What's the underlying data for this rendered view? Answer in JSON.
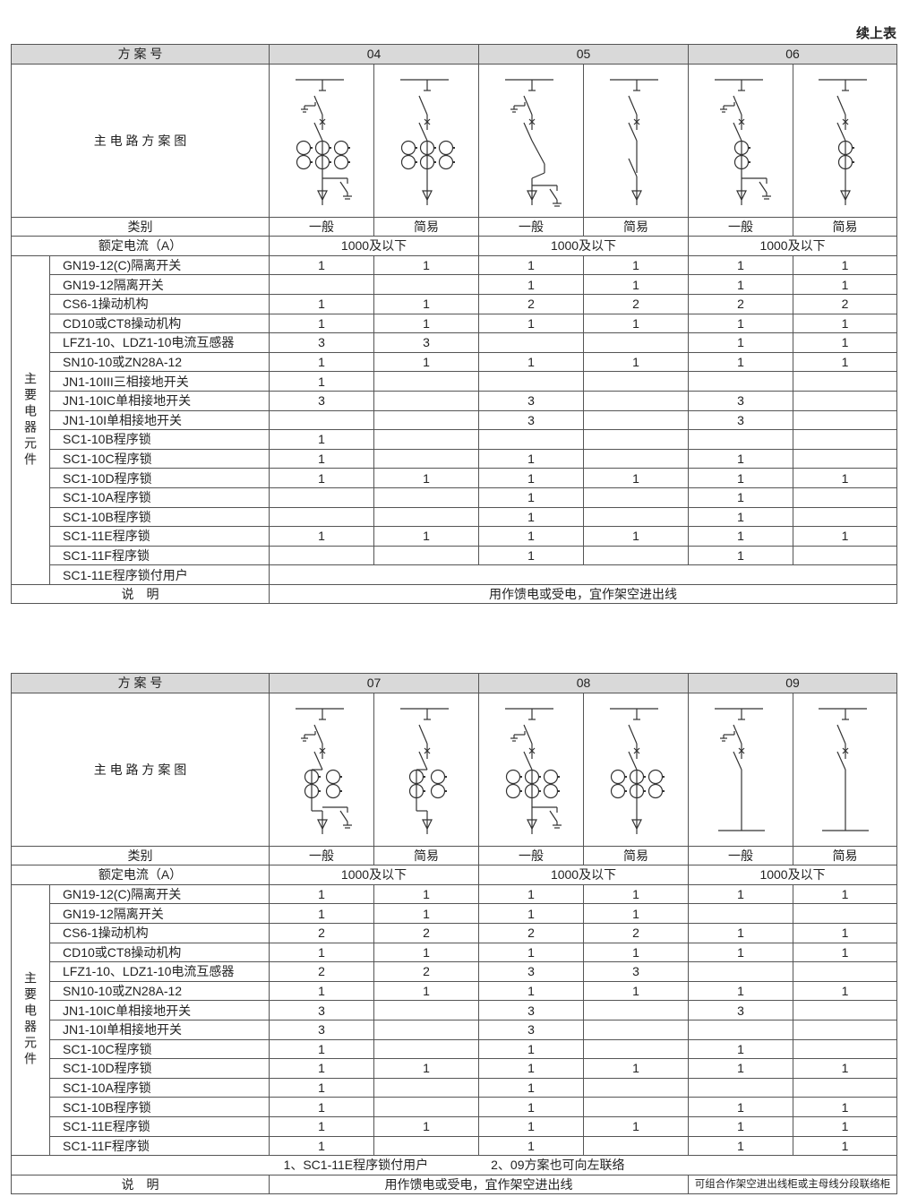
{
  "continued_label": "续上表",
  "labels": {
    "scheme_no": "方 案 号",
    "main_circuit": "主 电 路 方 案 图",
    "category": "类别",
    "rated_current": "额定电流（A）",
    "main_components": "主要电器元件",
    "remarks": "说　明"
  },
  "tables": [
    {
      "schemes": [
        "04",
        "05",
        "06"
      ],
      "categories": [
        "一般",
        "简易",
        "一般",
        "简易",
        "一般",
        "简易"
      ],
      "rated_current": [
        "1000及以下",
        "1000及以下",
        "1000及以下"
      ],
      "rows": [
        {
          "name": "GN19-12(C)隔离开关",
          "values": [
            "1",
            "1",
            "1",
            "1",
            "1",
            "1"
          ]
        },
        {
          "name": "GN19-12隔离开关",
          "values": [
            "",
            "",
            "1",
            "1",
            "1",
            "1"
          ]
        },
        {
          "name": "CS6-1操动机构",
          "values": [
            "1",
            "1",
            "2",
            "2",
            "2",
            "2"
          ]
        },
        {
          "name": "CD10或CT8操动机构",
          "values": [
            "1",
            "1",
            "1",
            "1",
            "1",
            "1"
          ]
        },
        {
          "name": "LFZ1-10、LDZ1-10电流互感器",
          "values": [
            "3",
            "3",
            "",
            "",
            "1",
            "1"
          ]
        },
        {
          "name": "SN10-10或ZN28A-12",
          "values": [
            "1",
            "1",
            "1",
            "1",
            "1",
            "1"
          ]
        },
        {
          "name": "JN1-10III三相接地开关",
          "values": [
            "1",
            "",
            "",
            "",
            "",
            ""
          ]
        },
        {
          "name": "JN1-10IC单相接地开关",
          "values": [
            "3",
            "",
            "3",
            "",
            "3",
            ""
          ]
        },
        {
          "name": "JN1-10I单相接地开关",
          "values": [
            "",
            "",
            "3",
            "",
            "3",
            ""
          ]
        },
        {
          "name": "SC1-10B程序锁",
          "values": [
            "1",
            "",
            "",
            "",
            "",
            ""
          ]
        },
        {
          "name": "SC1-10C程序锁",
          "values": [
            "1",
            "",
            "1",
            "",
            "1",
            ""
          ]
        },
        {
          "name": "SC1-10D程序锁",
          "values": [
            "1",
            "1",
            "1",
            "1",
            "1",
            "1"
          ]
        },
        {
          "name": "SC1-10A程序锁",
          "values": [
            "",
            "",
            "1",
            "",
            "1",
            ""
          ]
        },
        {
          "name": "SC1-10B程序锁",
          "values": [
            "",
            "",
            "1",
            "",
            "1",
            ""
          ]
        },
        {
          "name": "SC1-11E程序锁",
          "values": [
            "1",
            "1",
            "1",
            "1",
            "1",
            "1"
          ]
        },
        {
          "name": "SC1-11F程序锁",
          "values": [
            "",
            "",
            "1",
            "",
            "1",
            ""
          ]
        },
        {
          "name": "SC1-11E程序锁付用户",
          "values": []
        }
      ],
      "remarks": [
        "用作馈电或受电，宜作架空进出线"
      ]
    },
    {
      "schemes": [
        "07",
        "08",
        "09"
      ],
      "categories": [
        "一般",
        "简易",
        "一般",
        "简易",
        "一般",
        "简易"
      ],
      "rated_current": [
        "1000及以下",
        "1000及以下",
        "1000及以下"
      ],
      "rows": [
        {
          "name": "GN19-12(C)隔离开关",
          "values": [
            "1",
            "1",
            "1",
            "1",
            "1",
            "1"
          ]
        },
        {
          "name": "GN19-12隔离开关",
          "values": [
            "1",
            "1",
            "1",
            "1",
            "",
            ""
          ]
        },
        {
          "name": "CS6-1操动机构",
          "values": [
            "2",
            "2",
            "2",
            "2",
            "1",
            "1"
          ]
        },
        {
          "name": "CD10或CT8操动机构",
          "values": [
            "1",
            "1",
            "1",
            "1",
            "1",
            "1"
          ]
        },
        {
          "name": "LFZ1-10、LDZ1-10电流互感器",
          "values": [
            "2",
            "2",
            "3",
            "3",
            "",
            ""
          ]
        },
        {
          "name": "SN10-10或ZN28A-12",
          "values": [
            "1",
            "1",
            "1",
            "1",
            "1",
            "1"
          ]
        },
        {
          "name": "JN1-10IC单相接地开关",
          "values": [
            "3",
            "",
            "3",
            "",
            "3",
            ""
          ]
        },
        {
          "name": "JN1-10I单相接地开关",
          "values": [
            "3",
            "",
            "3",
            "",
            "",
            ""
          ]
        },
        {
          "name": "SC1-10C程序锁",
          "values": [
            "1",
            "",
            "1",
            "",
            "1",
            ""
          ]
        },
        {
          "name": "SC1-10D程序锁",
          "values": [
            "1",
            "1",
            "1",
            "1",
            "1",
            "1"
          ]
        },
        {
          "name": "SC1-10A程序锁",
          "values": [
            "1",
            "",
            "1",
            "",
            "",
            ""
          ]
        },
        {
          "name": "SC1-10B程序锁",
          "values": [
            "1",
            "",
            "1",
            "",
            "1",
            "1"
          ]
        },
        {
          "name": "SC1-11E程序锁",
          "values": [
            "1",
            "1",
            "1",
            "1",
            "1",
            "1"
          ]
        },
        {
          "name": "SC1-11F程序锁",
          "values": [
            "1",
            "",
            "1",
            "",
            "1",
            "1"
          ]
        }
      ],
      "notes": "1、SC1-11E程序锁付用户　　　　　2、09方案也可向左联络",
      "remarks": [
        "用作馈电或受电，宜作架空进出线",
        "可组合作架空进出线柜或主母线分段联络柜"
      ]
    }
  ],
  "colors": {
    "header_bg": "#d9d9d9",
    "line": "#555555"
  }
}
